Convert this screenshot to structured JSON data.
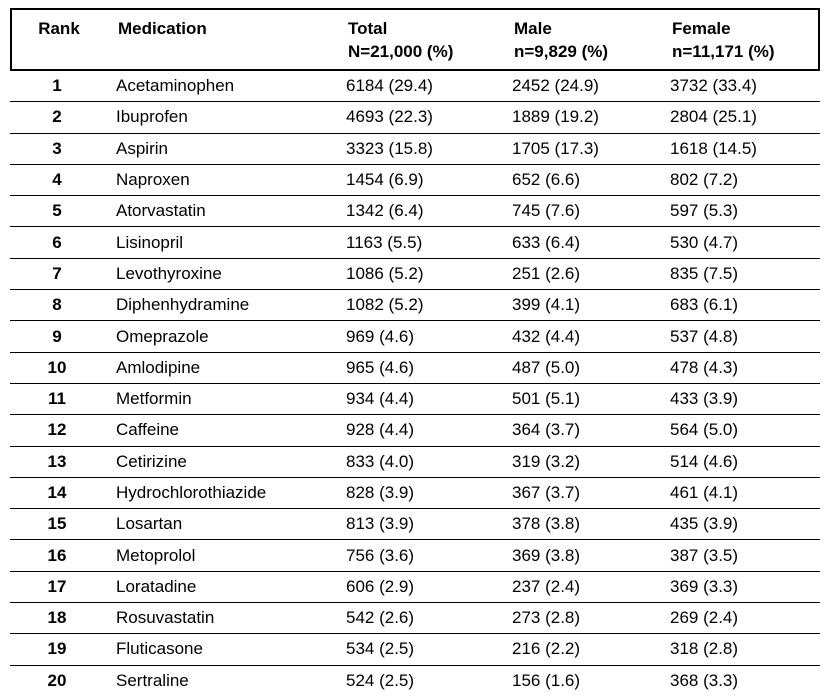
{
  "table": {
    "columns": [
      {
        "label": "Rank",
        "sublabel": ""
      },
      {
        "label": "Medication",
        "sublabel": ""
      },
      {
        "label": "Total",
        "sublabel": "N=21,000 (%)"
      },
      {
        "label": "Male",
        "sublabel": "n=9,829 (%)"
      },
      {
        "label": "Female",
        "sublabel": "n=11,171 (%)"
      }
    ],
    "rows": [
      {
        "rank": "1",
        "medication": "Acetaminophen",
        "total": "6184 (29.4)",
        "male": "2452 (24.9)",
        "female": "3732 (33.4)"
      },
      {
        "rank": "2",
        "medication": "Ibuprofen",
        "total": "4693 (22.3)",
        "male": "1889 (19.2)",
        "female": "2804 (25.1)"
      },
      {
        "rank": "3",
        "medication": "Aspirin",
        "total": "3323 (15.8)",
        "male": "1705 (17.3)",
        "female": "1618 (14.5)"
      },
      {
        "rank": "4",
        "medication": "Naproxen",
        "total": "1454 (6.9)",
        "male": "652 (6.6)",
        "female": "802 (7.2)"
      },
      {
        "rank": "5",
        "medication": "Atorvastatin",
        "total": "1342 (6.4)",
        "male": "745 (7.6)",
        "female": "597 (5.3)"
      },
      {
        "rank": "6",
        "medication": "Lisinopril",
        "total": "1163 (5.5)",
        "male": "633 (6.4)",
        "female": "530 (4.7)"
      },
      {
        "rank": "7",
        "medication": "Levothyroxine",
        "total": "1086 (5.2)",
        "male": "251 (2.6)",
        "female": "835 (7.5)"
      },
      {
        "rank": "8",
        "medication": "Diphenhydramine",
        "total": "1082 (5.2)",
        "male": "399 (4.1)",
        "female": "683 (6.1)"
      },
      {
        "rank": "9",
        "medication": "Omeprazole",
        "total": "969 (4.6)",
        "male": "432 (4.4)",
        "female": "537 (4.8)"
      },
      {
        "rank": "10",
        "medication": "Amlodipine",
        "total": "965 (4.6)",
        "male": "487 (5.0)",
        "female": "478 (4.3)"
      },
      {
        "rank": "11",
        "medication": "Metformin",
        "total": "934 (4.4)",
        "male": "501 (5.1)",
        "female": "433 (3.9)"
      },
      {
        "rank": "12",
        "medication": "Caffeine",
        "total": "928 (4.4)",
        "male": "364 (3.7)",
        "female": "564 (5.0)"
      },
      {
        "rank": "13",
        "medication": "Cetirizine",
        "total": "833 (4.0)",
        "male": "319 (3.2)",
        "female": "514 (4.6)"
      },
      {
        "rank": "14",
        "medication": "Hydrochlorothiazide",
        "total": "828 (3.9)",
        "male": "367 (3.7)",
        "female": "461 (4.1)"
      },
      {
        "rank": "15",
        "medication": "Losartan",
        "total": "813 (3.9)",
        "male": "378 (3.8)",
        "female": "435 (3.9)"
      },
      {
        "rank": "16",
        "medication": "Metoprolol",
        "total": "756 (3.6)",
        "male": "369 (3.8)",
        "female": "387 (3.5)"
      },
      {
        "rank": "17",
        "medication": "Loratadine",
        "total": "606 (2.9)",
        "male": "237 (2.4)",
        "female": "369 (3.3)"
      },
      {
        "rank": "18",
        "medication": "Rosuvastatin",
        "total": "542 (2.6)",
        "male": "273 (2.8)",
        "female": "269 (2.4)"
      },
      {
        "rank": "19",
        "medication": "Fluticasone",
        "total": "534 (2.5)",
        "male": "216 (2.2)",
        "female": "318 (2.8)"
      },
      {
        "rank": "20",
        "medication": "Sertraline",
        "total": "524 (2.5)",
        "male": "156 (1.6)",
        "female": "368 (3.3)"
      }
    ],
    "colors": {
      "text": "#000000",
      "background": "#ffffff",
      "border": "#000000"
    }
  }
}
